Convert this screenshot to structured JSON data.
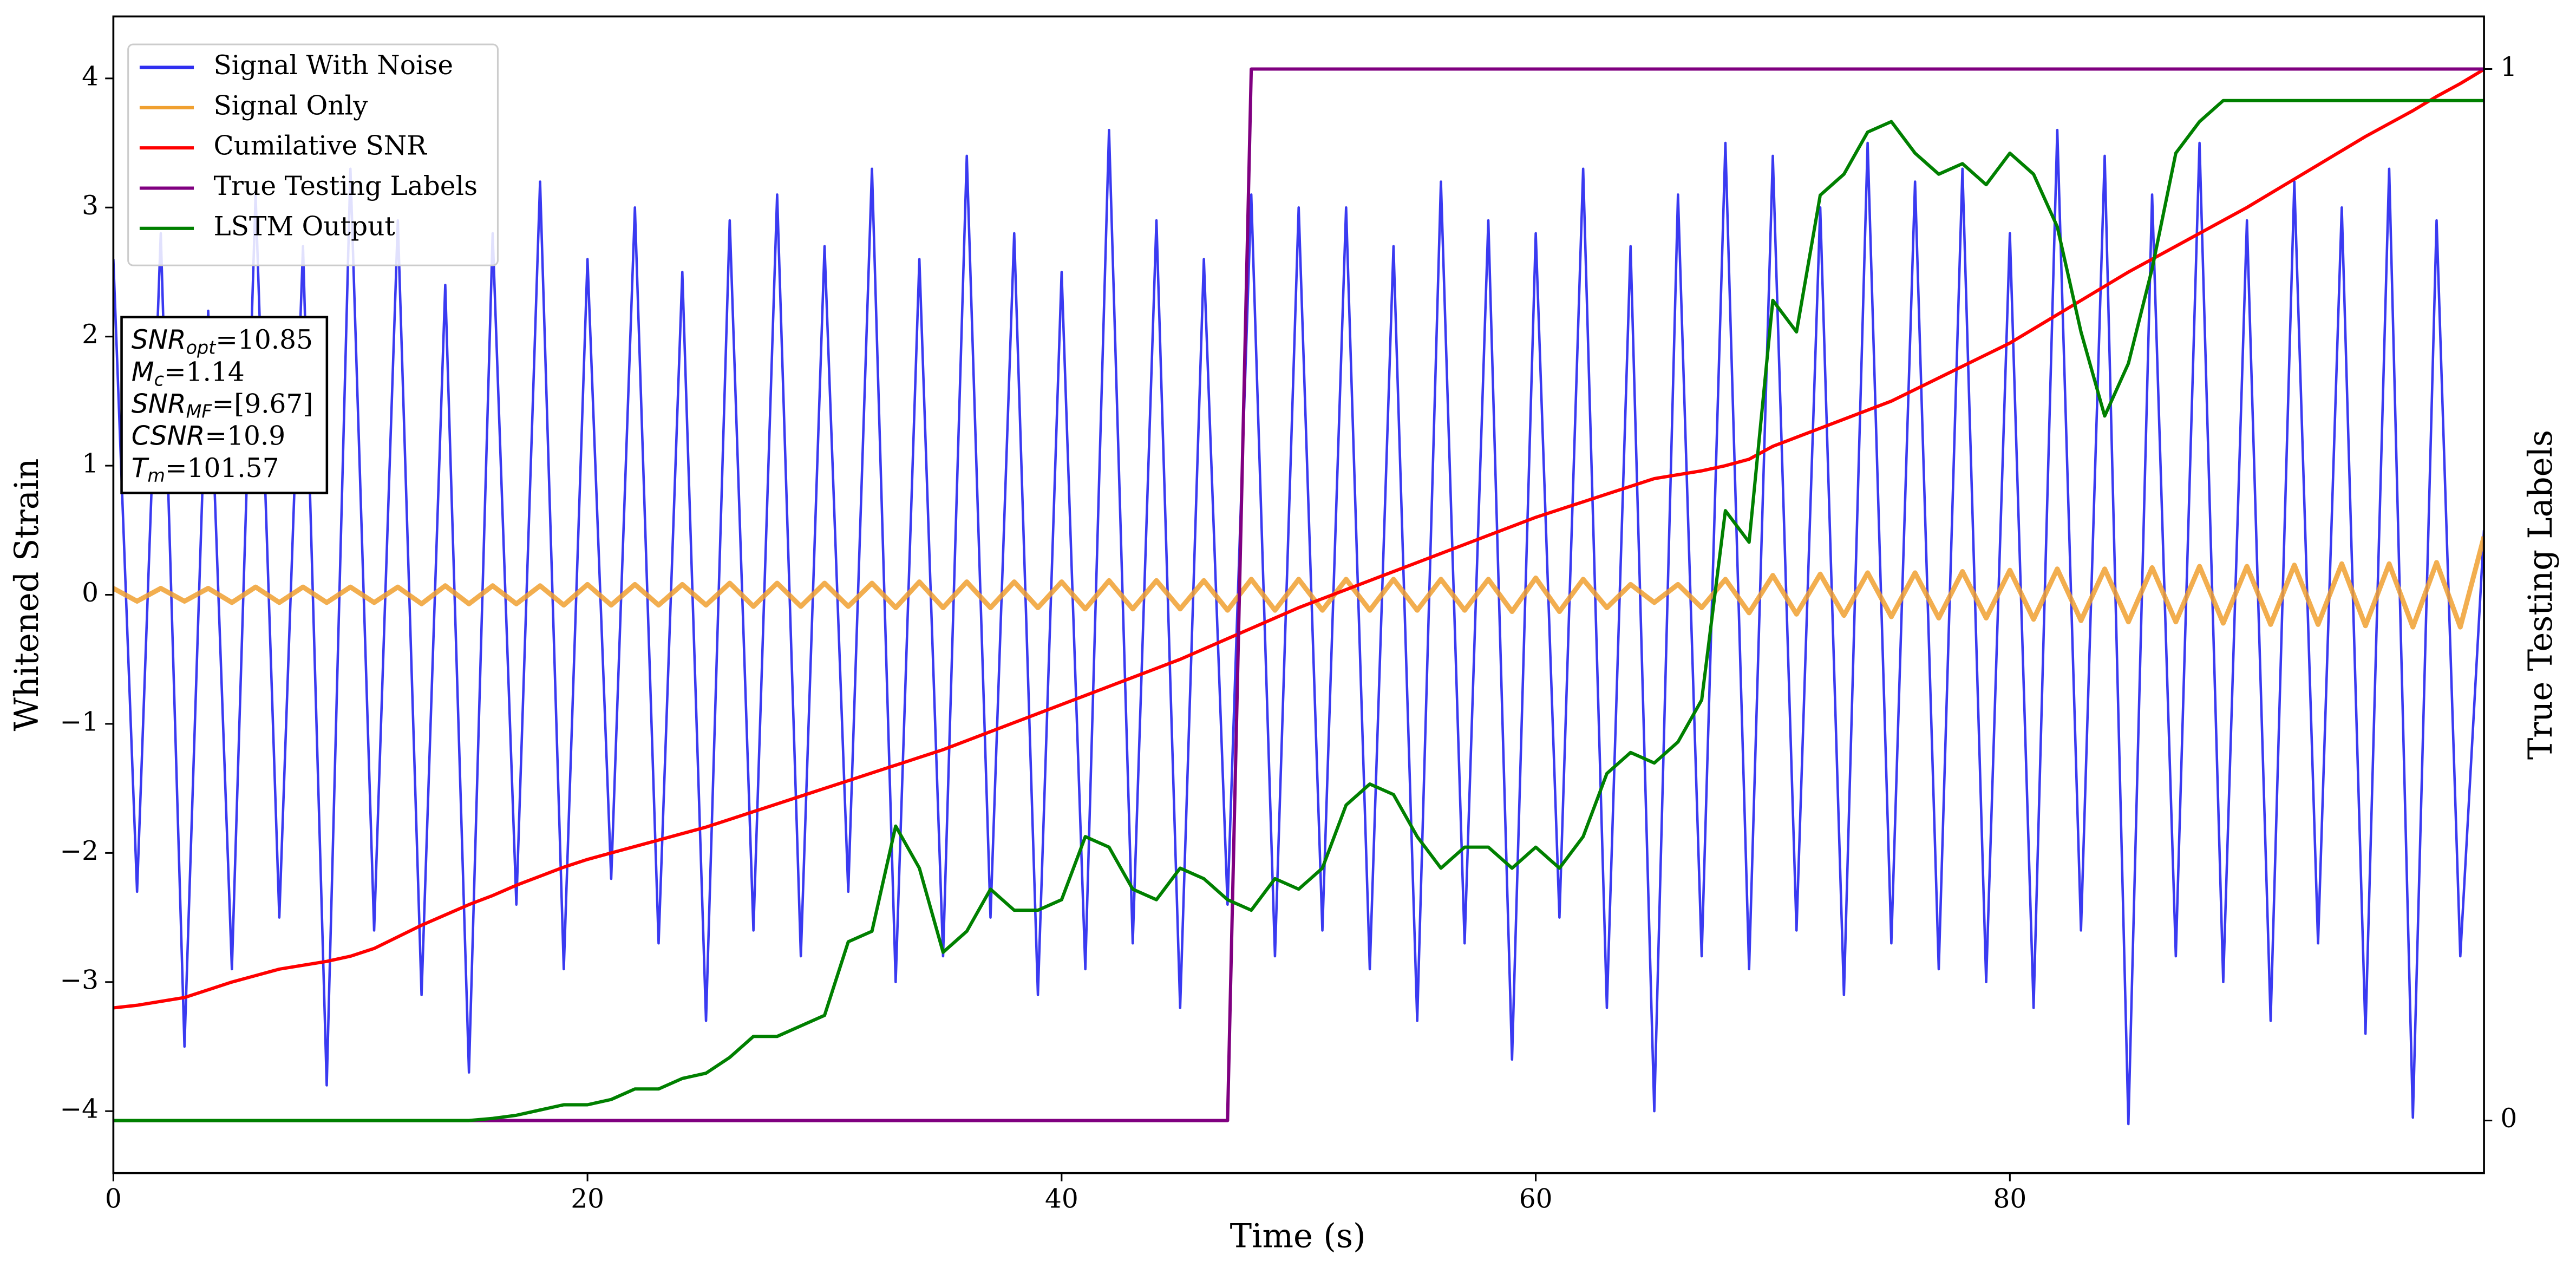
{
  "chart_data": {
    "type": "line",
    "xlabel": "Time (s)",
    "ylabel": "Whitened Strain",
    "y2label": "True Testing Labels",
    "legend": "upper left",
    "grid": false,
    "x": [
      0,
      1,
      2,
      3,
      4,
      5,
      6,
      7,
      8,
      9,
      10,
      11,
      12,
      13,
      14,
      15,
      16,
      17,
      18,
      19,
      20,
      21,
      22,
      23,
      24,
      25,
      26,
      27,
      28,
      29,
      30,
      31,
      32,
      33,
      34,
      35,
      36,
      37,
      38,
      39,
      40,
      41,
      42,
      43,
      44,
      45,
      46,
      47,
      48,
      49,
      50,
      51,
      52,
      53,
      54,
      55,
      56,
      57,
      58,
      59,
      60,
      61,
      62,
      63,
      64,
      65,
      66,
      67,
      68,
      69,
      70,
      71,
      72,
      73,
      74,
      75,
      76,
      77,
      78,
      79,
      80,
      81,
      82,
      83,
      84,
      85,
      86,
      87,
      88,
      89,
      90,
      91,
      92,
      93,
      94,
      95,
      96,
      97,
      98,
      99,
      100
    ],
    "xlim": [
      0,
      100
    ],
    "xticks": [
      0,
      20,
      40,
      60,
      80
    ],
    "ylim": [
      -4.48,
      4.48
    ],
    "yticks": [
      {
        "value": -4,
        "label": "−4"
      },
      {
        "value": -3,
        "label": "−3"
      },
      {
        "value": -2,
        "label": "−2"
      },
      {
        "value": -1,
        "label": "−1"
      },
      0,
      1,
      2,
      3,
      4
    ],
    "y2lim": [
      -0.05,
      1.05
    ],
    "y2ticks": [
      0,
      1
    ],
    "series": [
      {
        "name": "Signal With Noise",
        "color": "#2f2ff0",
        "values": [
          2.6,
          -2.3,
          2.8,
          -3.5,
          2.2,
          -2.9,
          3.1,
          -2.5,
          2.7,
          -3.8,
          3.3,
          -2.6,
          2.9,
          -3.1,
          2.4,
          -3.7,
          2.8,
          -2.4,
          3.2,
          -2.9,
          2.6,
          -2.2,
          3.0,
          -2.7,
          2.5,
          -3.3,
          2.9,
          -2.6,
          3.1,
          -2.8,
          2.7,
          -2.3,
          3.3,
          -3.0,
          2.6,
          -2.8,
          3.4,
          -2.5,
          2.8,
          -3.1,
          2.5,
          -2.9,
          3.6,
          -2.7,
          2.9,
          -3.2,
          2.6,
          -2.4,
          3.1,
          -2.8,
          3.0,
          -2.6,
          3.0,
          -2.9,
          2.7,
          -3.3,
          3.2,
          -2.7,
          2.9,
          -3.6,
          2.8,
          -2.5,
          3.3,
          -3.2,
          2.7,
          -4.0,
          3.1,
          -2.8,
          3.5,
          -2.9,
          3.4,
          -2.6,
          3.0,
          -3.1,
          3.5,
          -2.7,
          3.2,
          -2.9,
          3.3,
          -3.0,
          2.8,
          -3.2,
          3.6,
          -2.6,
          3.4,
          -4.1,
          3.1,
          -2.8,
          3.5,
          -3.0,
          2.9,
          -3.3,
          3.2,
          -2.7,
          3.0,
          -3.4,
          3.3,
          -4.05,
          2.9,
          -2.8,
          0.5
        ]
      },
      {
        "name": "Signal Only",
        "color": "#f0a030",
        "values": [
          0.05,
          -0.05,
          0.05,
          -0.05,
          0.05,
          -0.06,
          0.06,
          -0.06,
          0.06,
          -0.06,
          0.06,
          -0.06,
          0.06,
          -0.07,
          0.07,
          -0.07,
          0.07,
          -0.07,
          0.07,
          -0.08,
          0.08,
          -0.08,
          0.08,
          -0.08,
          0.08,
          -0.08,
          0.09,
          -0.09,
          0.09,
          -0.09,
          0.09,
          -0.09,
          0.09,
          -0.1,
          0.1,
          -0.1,
          0.1,
          -0.1,
          0.1,
          -0.1,
          0.1,
          -0.11,
          0.11,
          -0.11,
          0.11,
          -0.11,
          0.11,
          -0.12,
          0.12,
          -0.12,
          0.12,
          -0.12,
          0.12,
          -0.12,
          0.12,
          -0.12,
          0.12,
          -0.12,
          0.12,
          -0.13,
          0.13,
          -0.13,
          0.12,
          -0.1,
          0.08,
          -0.06,
          0.08,
          -0.1,
          0.12,
          -0.14,
          0.15,
          -0.15,
          0.16,
          -0.16,
          0.17,
          -0.17,
          0.17,
          -0.18,
          0.18,
          -0.18,
          0.19,
          -0.19,
          0.2,
          -0.2,
          0.2,
          -0.21,
          0.21,
          -0.21,
          0.22,
          -0.22,
          0.22,
          -0.23,
          0.23,
          -0.23,
          0.24,
          -0.24,
          0.24,
          -0.25,
          0.25,
          -0.25,
          0.45
        ]
      },
      {
        "name": "Cumilative SNR",
        "color": "#ff0000",
        "values": [
          -3.2,
          -3.18,
          -3.15,
          -3.12,
          -3.06,
          -3.0,
          -2.95,
          -2.9,
          -2.87,
          -2.84,
          -2.8,
          -2.74,
          -2.65,
          -2.56,
          -2.48,
          -2.4,
          -2.33,
          -2.25,
          -2.18,
          -2.11,
          -2.05,
          -2.0,
          -1.95,
          -1.9,
          -1.85,
          -1.8,
          -1.74,
          -1.68,
          -1.62,
          -1.56,
          -1.5,
          -1.44,
          -1.38,
          -1.32,
          -1.26,
          -1.2,
          -1.13,
          -1.06,
          -0.99,
          -0.92,
          -0.85,
          -0.78,
          -0.71,
          -0.64,
          -0.57,
          -0.5,
          -0.42,
          -0.34,
          -0.26,
          -0.18,
          -0.1,
          -0.03,
          0.04,
          0.11,
          0.18,
          0.25,
          0.32,
          0.39,
          0.46,
          0.53,
          0.6,
          0.66,
          0.72,
          0.78,
          0.84,
          0.9,
          0.93,
          0.96,
          1.0,
          1.05,
          1.15,
          1.22,
          1.29,
          1.36,
          1.43,
          1.5,
          1.59,
          1.68,
          1.77,
          1.86,
          1.95,
          2.06,
          2.17,
          2.28,
          2.39,
          2.5,
          2.6,
          2.7,
          2.8,
          2.9,
          3.0,
          3.11,
          3.22,
          3.33,
          3.44,
          3.55,
          3.65,
          3.75,
          3.86,
          3.96,
          4.07
        ]
      },
      {
        "name": "True Testing Labels",
        "color": "#800080",
        "axis": "y2",
        "values": [
          0,
          0,
          0,
          0,
          0,
          0,
          0,
          0,
          0,
          0,
          0,
          0,
          0,
          0,
          0,
          0,
          0,
          0,
          0,
          0,
          0,
          0,
          0,
          0,
          0,
          0,
          0,
          0,
          0,
          0,
          0,
          0,
          0,
          0,
          0,
          0,
          0,
          0,
          0,
          0,
          0,
          0,
          0,
          0,
          0,
          0,
          0,
          0,
          1,
          1,
          1,
          1,
          1,
          1,
          1,
          1,
          1,
          1,
          1,
          1,
          1,
          1,
          1,
          1,
          1,
          1,
          1,
          1,
          1,
          1,
          1,
          1,
          1,
          1,
          1,
          1,
          1,
          1,
          1,
          1,
          1,
          1,
          1,
          1,
          1,
          1,
          1,
          1,
          1,
          1,
          1,
          1,
          1,
          1,
          1,
          1,
          1,
          1,
          1,
          1,
          1
        ]
      },
      {
        "name": "LSTM Output",
        "color": "#008000",
        "axis": "y2",
        "values": [
          0,
          0,
          0,
          0,
          0,
          0,
          0,
          0,
          0,
          0,
          0,
          0,
          0,
          0,
          0,
          0,
          0.002,
          0.005,
          0.01,
          0.015,
          0.015,
          0.02,
          0.03,
          0.03,
          0.04,
          0.045,
          0.06,
          0.08,
          0.08,
          0.09,
          0.1,
          0.17,
          0.18,
          0.28,
          0.24,
          0.16,
          0.18,
          0.22,
          0.2,
          0.2,
          0.21,
          0.27,
          0.26,
          0.22,
          0.21,
          0.24,
          0.23,
          0.21,
          0.2,
          0.23,
          0.22,
          0.24,
          0.3,
          0.32,
          0.31,
          0.27,
          0.24,
          0.26,
          0.26,
          0.24,
          0.26,
          0.24,
          0.27,
          0.33,
          0.35,
          0.34,
          0.36,
          0.4,
          0.58,
          0.55,
          0.78,
          0.75,
          0.88,
          0.9,
          0.94,
          0.95,
          0.92,
          0.9,
          0.91,
          0.89,
          0.92,
          0.9,
          0.85,
          0.75,
          0.67,
          0.72,
          0.81,
          0.92,
          0.95,
          0.97,
          0.97,
          0.97,
          0.97,
          0.97,
          0.97,
          0.97,
          0.97,
          0.97,
          0.97,
          0.97,
          0.97
        ]
      }
    ],
    "annotations": [
      {
        "text": "SNR",
        "sub": "opt",
        "rest": "=10.85"
      },
      {
        "text": "M",
        "sub": "c",
        "rest": "=1.14"
      },
      {
        "text": "SNR",
        "sub": "MF",
        "rest": "=[9.67]"
      },
      {
        "text": "CSNR",
        "rest": "=10.9"
      },
      {
        "text": "T",
        "sub": "m",
        "rest": "=101.57"
      }
    ]
  }
}
